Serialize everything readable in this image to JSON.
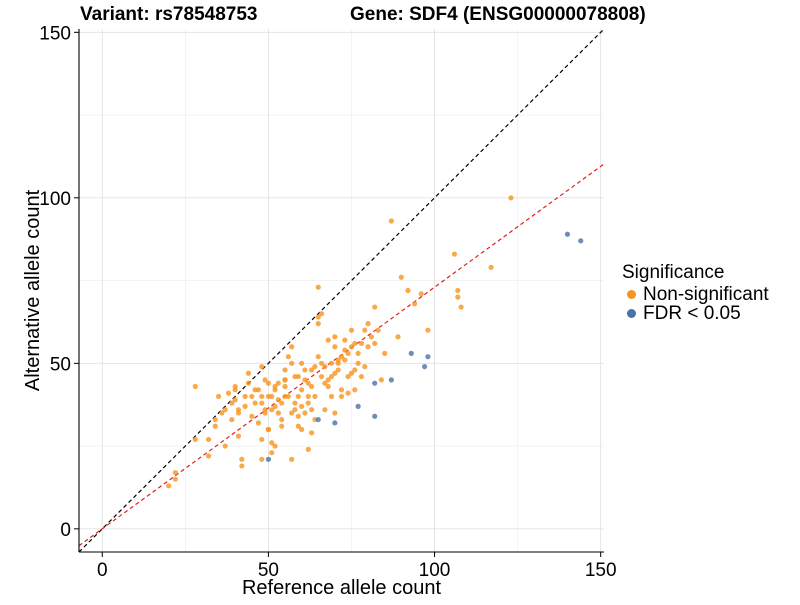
{
  "title": {
    "variant": "Variant: rs78548753",
    "gene": "Gene: SDF4 (ENSG00000078808)"
  },
  "legend": {
    "title": "Significance",
    "items": [
      {
        "label": "Non-significant",
        "color": "#F7941D"
      },
      {
        "label": "FDR < 0.05",
        "color": "#4A72A8"
      }
    ]
  },
  "chart_data": {
    "type": "scatter",
    "xlabel": "Reference allele count",
    "ylabel": "Alternative allele count",
    "xlim": [
      -7,
      151
    ],
    "ylim": [
      -7,
      151
    ],
    "xticks": [
      0,
      50,
      100,
      150
    ],
    "yticks": [
      0,
      50,
      100,
      150
    ],
    "grid": true,
    "legend_position": "right",
    "reference_lines": [
      {
        "style": "dashed",
        "color": "#000000",
        "slope": 1,
        "intercept": 0
      },
      {
        "style": "dashed",
        "color": "#E0201E",
        "slope": 0.73,
        "intercept": 0
      }
    ],
    "series": [
      {
        "name": "Non-significant",
        "color": "#F7941D",
        "points": [
          [
            20,
            13
          ],
          [
            22,
            15
          ],
          [
            22,
            17
          ],
          [
            28,
            27
          ],
          [
            28,
            43
          ],
          [
            32,
            27
          ],
          [
            32,
            22
          ],
          [
            34,
            33
          ],
          [
            34,
            31
          ],
          [
            35,
            40
          ],
          [
            36,
            35
          ],
          [
            37,
            36
          ],
          [
            37,
            25
          ],
          [
            38,
            41
          ],
          [
            39,
            33
          ],
          [
            39,
            38
          ],
          [
            40,
            42
          ],
          [
            40,
            39
          ],
          [
            40,
            43
          ],
          [
            41,
            36
          ],
          [
            41,
            35
          ],
          [
            41,
            28
          ],
          [
            42,
            21
          ],
          [
            42,
            19
          ],
          [
            43,
            37
          ],
          [
            43,
            40
          ],
          [
            44,
            47
          ],
          [
            44,
            44
          ],
          [
            45,
            34
          ],
          [
            45,
            40
          ],
          [
            46,
            38
          ],
          [
            46,
            42
          ],
          [
            47,
            42
          ],
          [
            47,
            32
          ],
          [
            48,
            40
          ],
          [
            48,
            49
          ],
          [
            48,
            38
          ],
          [
            48,
            21
          ],
          [
            49,
            36
          ],
          [
            49,
            45
          ],
          [
            49,
            35
          ],
          [
            50,
            30
          ],
          [
            50,
            40
          ],
          [
            50,
            44
          ],
          [
            50,
            30
          ],
          [
            51,
            26
          ],
          [
            51,
            23
          ],
          [
            51,
            36
          ],
          [
            51,
            40
          ],
          [
            52,
            43
          ],
          [
            52,
            42
          ],
          [
            52,
            37
          ],
          [
            53,
            44
          ],
          [
            53,
            39
          ],
          [
            53,
            35
          ],
          [
            54,
            38
          ],
          [
            54,
            33
          ],
          [
            54,
            31
          ],
          [
            55,
            43
          ],
          [
            55,
            40
          ],
          [
            55,
            48
          ],
          [
            55,
            45
          ],
          [
            56,
            40
          ],
          [
            56,
            52
          ],
          [
            57,
            55
          ],
          [
            57,
            50
          ],
          [
            57,
            35
          ],
          [
            58,
            36
          ],
          [
            58,
            46
          ],
          [
            58,
            38
          ],
          [
            59,
            34
          ],
          [
            59,
            31
          ],
          [
            59,
            40
          ],
          [
            59,
            46
          ],
          [
            60,
            42
          ],
          [
            60,
            50
          ],
          [
            60,
            37
          ],
          [
            60,
            30
          ],
          [
            61,
            48
          ],
          [
            61,
            35
          ],
          [
            61,
            45
          ],
          [
            62,
            44
          ],
          [
            62,
            40
          ],
          [
            62,
            38
          ],
          [
            63,
            48
          ],
          [
            63,
            43
          ],
          [
            63,
            36
          ],
          [
            63,
            29
          ],
          [
            64,
            49
          ],
          [
            64,
            40
          ],
          [
            64,
            33
          ],
          [
            65,
            73
          ],
          [
            65,
            62
          ],
          [
            65,
            64
          ],
          [
            65,
            52
          ],
          [
            66,
            65
          ],
          [
            66,
            50
          ],
          [
            66,
            46
          ],
          [
            67,
            49
          ],
          [
            67,
            44
          ],
          [
            67,
            36
          ],
          [
            68,
            57
          ],
          [
            68,
            45
          ],
          [
            68,
            43
          ],
          [
            69,
            46
          ],
          [
            69,
            40
          ],
          [
            70,
            47
          ],
          [
            70,
            58
          ],
          [
            70,
            55
          ],
          [
            70,
            35
          ],
          [
            71,
            51
          ],
          [
            71,
            48
          ],
          [
            71,
            50
          ],
          [
            72,
            52
          ],
          [
            72,
            42
          ],
          [
            72,
            40
          ],
          [
            73,
            54
          ],
          [
            73,
            51
          ],
          [
            73,
            57
          ],
          [
            74,
            53
          ],
          [
            74,
            46
          ],
          [
            74,
            41
          ],
          [
            75,
            47
          ],
          [
            75,
            55
          ],
          [
            75,
            60
          ],
          [
            76,
            56
          ],
          [
            76,
            42
          ],
          [
            76,
            48
          ],
          [
            77,
            50
          ],
          [
            77,
            53
          ],
          [
            78,
            56
          ],
          [
            78,
            46
          ],
          [
            79,
            60
          ],
          [
            79,
            49
          ],
          [
            80,
            62
          ],
          [
            80,
            55
          ],
          [
            81,
            58
          ],
          [
            82,
            67
          ],
          [
            82,
            56
          ],
          [
            83,
            60
          ],
          [
            84,
            45
          ],
          [
            85,
            53
          ],
          [
            87,
            93
          ],
          [
            89,
            58
          ],
          [
            90,
            76
          ],
          [
            92,
            72
          ],
          [
            94,
            68
          ],
          [
            96,
            71
          ],
          [
            98,
            60
          ],
          [
            106,
            83
          ],
          [
            107,
            72
          ],
          [
            107,
            70
          ],
          [
            108,
            67
          ],
          [
            117,
            79
          ],
          [
            123,
            100
          ],
          [
            57,
            21
          ],
          [
            48,
            27
          ],
          [
            52,
            25
          ],
          [
            62,
            24
          ],
          [
            55,
            45
          ],
          [
            69,
            50
          ]
        ]
      },
      {
        "name": "FDR < 0.05",
        "color": "#4A72A8",
        "points": [
          [
            50,
            21
          ],
          [
            65,
            33
          ],
          [
            70,
            32
          ],
          [
            77,
            37
          ],
          [
            82,
            44
          ],
          [
            82,
            34
          ],
          [
            87,
            45
          ],
          [
            93,
            53
          ],
          [
            97,
            49
          ],
          [
            98,
            52
          ],
          [
            140,
            89
          ],
          [
            144,
            87
          ]
        ]
      }
    ]
  }
}
